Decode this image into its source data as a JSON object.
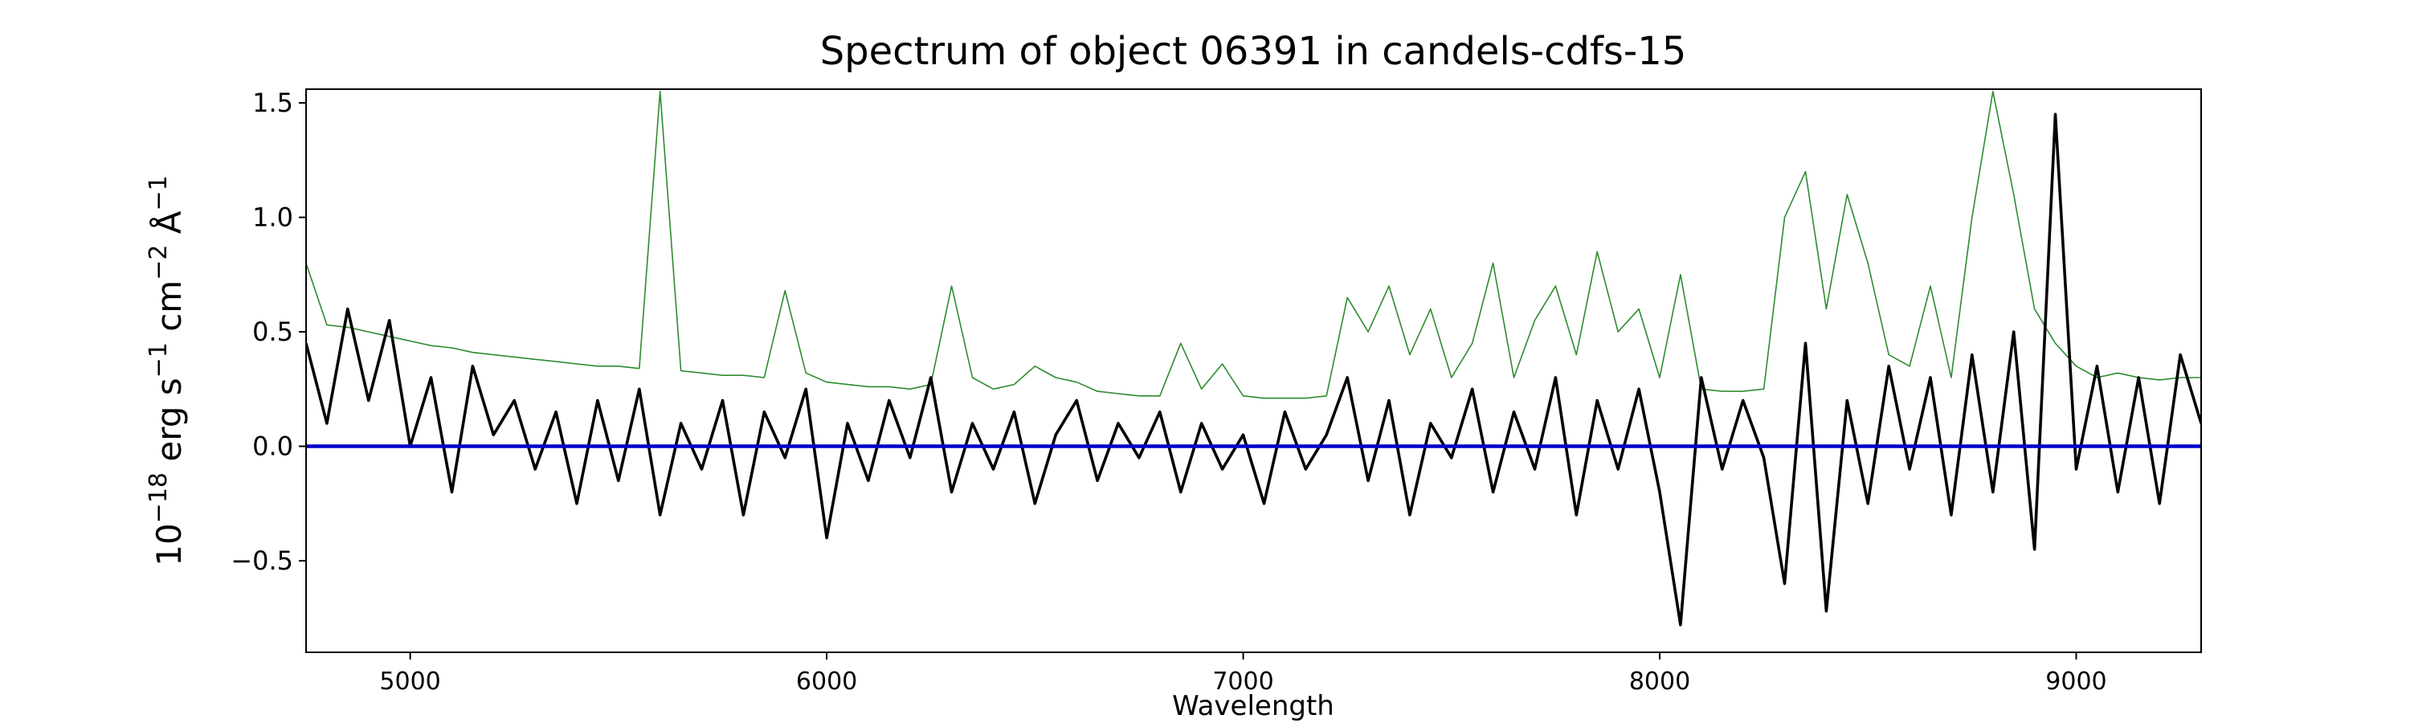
{
  "chart_data": {
    "type": "line",
    "title": "Spectrum of object 06391 in candels-cdfs-15",
    "xlabel": "Wavelength",
    "ylabel_parts": [
      "10",
      "−18",
      " erg s",
      "−1",
      " cm",
      "−2",
      " Å",
      "−1"
    ],
    "xlim": [
      4750,
      9300
    ],
    "ylim": [
      -0.9,
      1.56
    ],
    "xticks": [
      5000,
      6000,
      7000,
      8000,
      9000
    ],
    "yticks": [
      {
        "value": -0.5,
        "label": "−0.5"
      },
      {
        "value": 0,
        "label": "0.0"
      },
      {
        "value": 0.5,
        "label": "0.5"
      },
      {
        "value": 1,
        "label": "1.0"
      },
      {
        "value": 1.5,
        "label": "1.5"
      }
    ],
    "grid": false,
    "x": [
      4750,
      4800,
      4850,
      4900,
      4950,
      5000,
      5050,
      5100,
      5150,
      5200,
      5250,
      5300,
      5350,
      5400,
      5450,
      5500,
      5550,
      5600,
      5650,
      5700,
      5750,
      5800,
      5850,
      5900,
      5950,
      6000,
      6050,
      6100,
      6150,
      6200,
      6250,
      6300,
      6350,
      6400,
      6450,
      6500,
      6550,
      6600,
      6650,
      6700,
      6750,
      6800,
      6850,
      6900,
      6950,
      7000,
      7050,
      7100,
      7150,
      7200,
      7250,
      7300,
      7350,
      7400,
      7450,
      7500,
      7550,
      7600,
      7650,
      7700,
      7750,
      7800,
      7850,
      7900,
      7950,
      8000,
      8050,
      8100,
      8150,
      8200,
      8250,
      8300,
      8350,
      8400,
      8450,
      8500,
      8550,
      8600,
      8650,
      8700,
      8750,
      8800,
      8850,
      8900,
      8950,
      9000,
      9050,
      9100,
      9150,
      9200,
      9250,
      9300
    ],
    "series": [
      {
        "color": "#2e8b2e",
        "values": [
          0.8,
          0.53,
          0.52,
          0.5,
          0.48,
          0.46,
          0.44,
          0.43,
          0.41,
          0.4,
          0.39,
          0.38,
          0.37,
          0.36,
          0.35,
          0.35,
          0.34,
          1.55,
          0.33,
          0.32,
          0.31,
          0.31,
          0.3,
          0.68,
          0.32,
          0.28,
          0.27,
          0.26,
          0.26,
          0.25,
          0.27,
          0.7,
          0.3,
          0.25,
          0.27,
          0.35,
          0.3,
          0.28,
          0.24,
          0.23,
          0.22,
          0.22,
          0.45,
          0.25,
          0.36,
          0.22,
          0.21,
          0.21,
          0.21,
          0.22,
          0.65,
          0.5,
          0.7,
          0.4,
          0.6,
          0.3,
          0.45,
          0.8,
          0.3,
          0.55,
          0.7,
          0.4,
          0.85,
          0.5,
          0.6,
          0.3,
          0.75,
          0.25,
          0.24,
          0.24,
          0.25,
          1.0,
          1.2,
          0.6,
          1.1,
          0.8,
          0.4,
          0.35,
          0.7,
          0.3,
          1.0,
          1.55,
          1.1,
          0.6,
          0.45,
          0.35,
          0.3,
          0.32,
          0.3,
          0.29,
          0.3,
          0.3
        ]
      },
      {
        "color": "#000000",
        "values": [
          0.45,
          0.1,
          0.6,
          0.2,
          0.55,
          0.0,
          0.3,
          -0.2,
          0.35,
          0.05,
          0.2,
          -0.1,
          0.15,
          -0.25,
          0.2,
          -0.15,
          0.25,
          -0.3,
          0.1,
          -0.1,
          0.2,
          -0.3,
          0.15,
          -0.05,
          0.25,
          -0.4,
          0.1,
          -0.15,
          0.2,
          -0.05,
          0.3,
          -0.2,
          0.1,
          -0.1,
          0.15,
          -0.25,
          0.05,
          0.2,
          -0.15,
          0.1,
          -0.05,
          0.15,
          -0.2,
          0.1,
          -0.1,
          0.05,
          -0.25,
          0.15,
          -0.1,
          0.05,
          0.3,
          -0.15,
          0.2,
          -0.3,
          0.1,
          -0.05,
          0.25,
          -0.2,
          0.15,
          -0.1,
          0.3,
          -0.3,
          0.2,
          -0.1,
          0.25,
          -0.2,
          -0.78,
          0.3,
          -0.1,
          0.2,
          -0.05,
          -0.6,
          0.45,
          -0.72,
          0.2,
          -0.25,
          0.35,
          -0.1,
          0.3,
          -0.3,
          0.4,
          -0.2,
          0.5,
          -0.45,
          1.45,
          -0.1,
          0.35,
          -0.2,
          0.3,
          -0.25,
          0.4,
          0.1
        ]
      },
      {
        "color": "#0000cc",
        "x": [
          4750,
          9300
        ],
        "values": [
          0,
          0
        ]
      }
    ]
  }
}
